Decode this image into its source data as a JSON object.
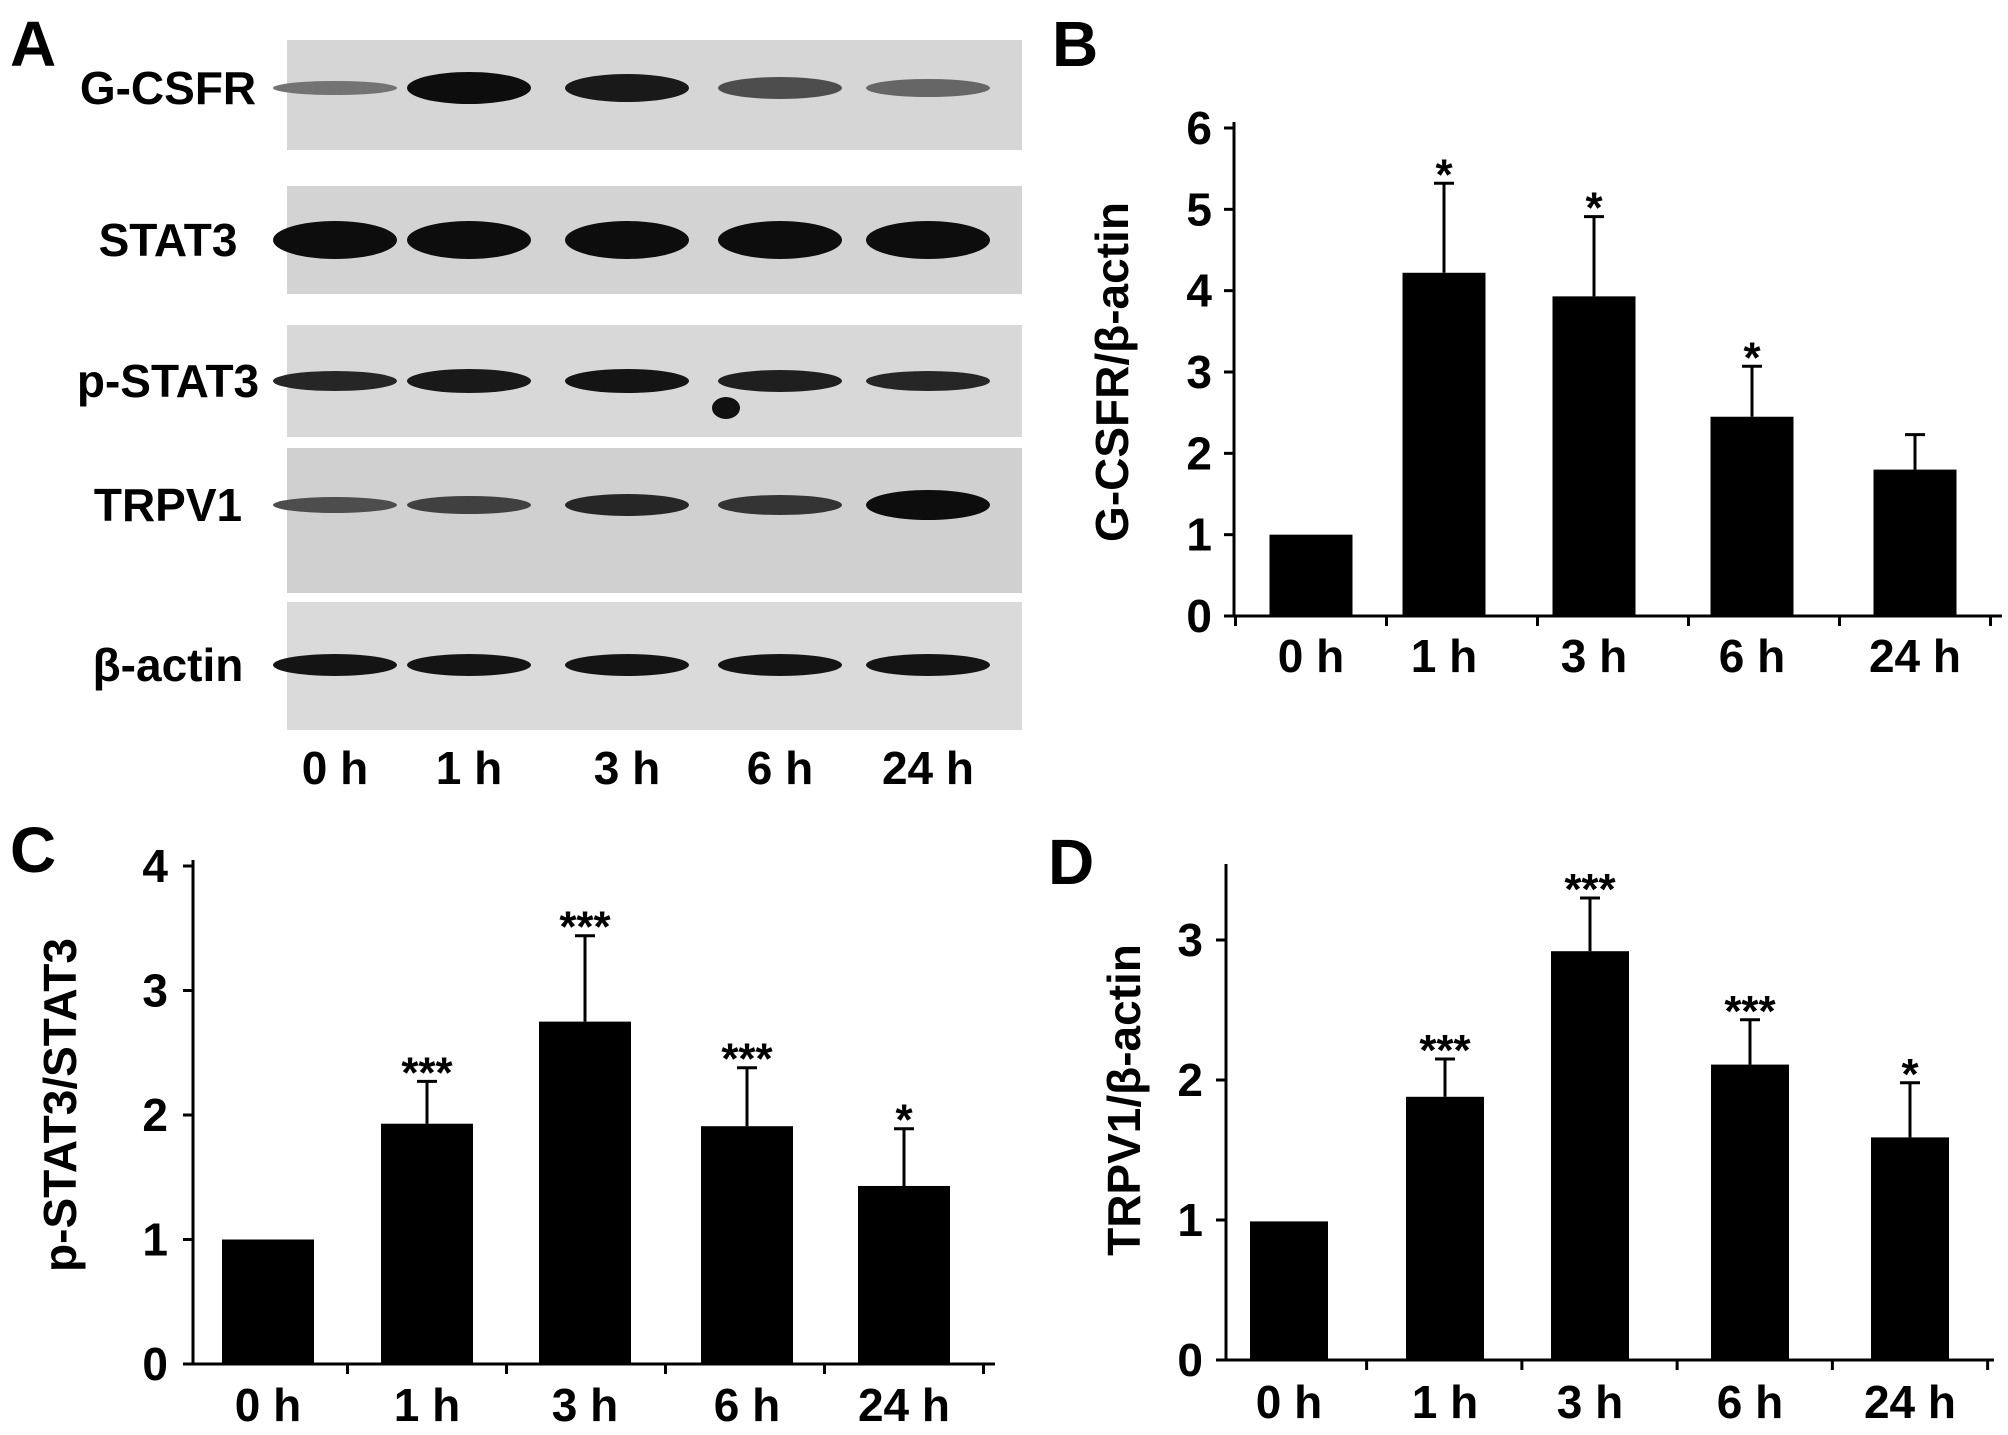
{
  "figure": {
    "panels": [
      {
        "letter": "A",
        "type": "western_blot",
        "proteins": [
          "G-CSFR",
          "STAT3",
          "p-STAT3",
          "TRPV1",
          "β-actin"
        ],
        "lanes": [
          "0 h",
          "1 h",
          "3 h",
          "6 h",
          "24 h"
        ]
      }
    ]
  },
  "chart_data": [
    {
      "panel": "B",
      "type": "bar",
      "categories": [
        "0 h",
        "1 h",
        "3 h",
        "6 h",
        "24 h"
      ],
      "values": [
        1.0,
        4.22,
        3.93,
        2.45,
        1.8
      ],
      "errors": [
        0,
        1.1,
        0.98,
        0.62,
        0.43
      ],
      "significance": [
        "",
        "*",
        "*",
        "*",
        ""
      ],
      "ylabel": "G-CSFR/β-actin",
      "ylim": [
        0,
        6
      ],
      "yticks": [
        0,
        1,
        2,
        3,
        4,
        5,
        6
      ],
      "bar_color": "#000000"
    },
    {
      "panel": "C",
      "type": "bar",
      "categories": [
        "0 h",
        "1 h",
        "3 h",
        "6 h",
        "24 h"
      ],
      "values": [
        1.0,
        1.93,
        2.75,
        1.91,
        1.43
      ],
      "errors": [
        0,
        0.34,
        0.69,
        0.47,
        0.46
      ],
      "significance": [
        "",
        "***",
        "***",
        "***",
        "*"
      ],
      "ylabel": "p-STAT3/STAT3",
      "ylim": [
        0,
        4
      ],
      "yticks": [
        0,
        1,
        2,
        3,
        4
      ],
      "bar_color": "#000000"
    },
    {
      "panel": "D",
      "type": "bar",
      "categories": [
        "0 h",
        "1 h",
        "3 h",
        "6 h",
        "24 h"
      ],
      "values": [
        0.99,
        1.88,
        2.92,
        2.11,
        1.59
      ],
      "errors": [
        0.01,
        0.27,
        0.38,
        0.32,
        0.39
      ],
      "significance": [
        "",
        "***",
        "***",
        "***",
        "*"
      ],
      "ylabel": "TRPV1/β-actin",
      "ylim": [
        0,
        3.5
      ],
      "yticks": [
        0,
        1,
        2,
        3
      ],
      "bar_color": "#000000"
    }
  ]
}
